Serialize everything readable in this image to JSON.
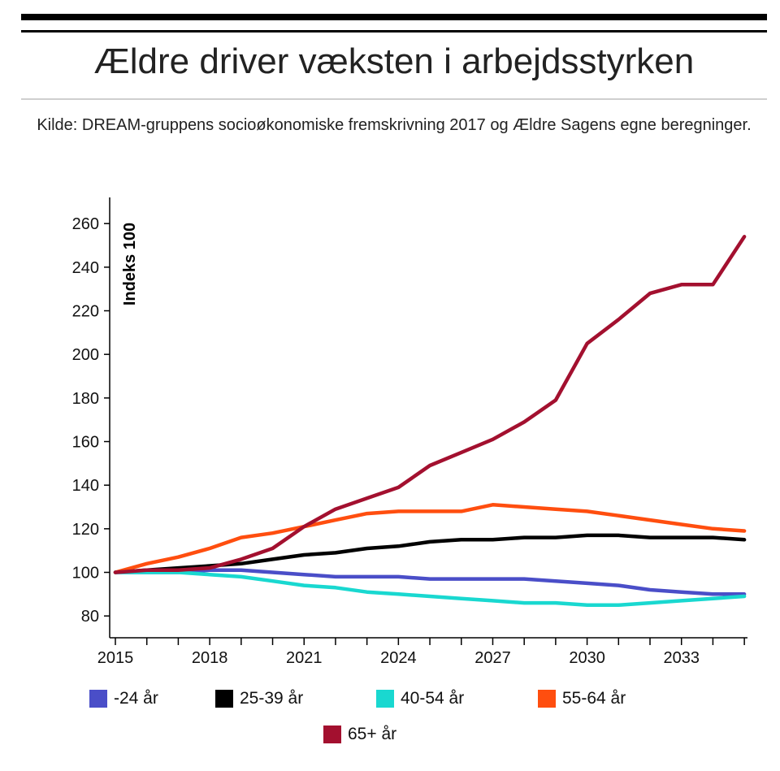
{
  "header": {
    "title": "Ældre driver væksten i arbejdsstyrken",
    "subtitle": "Kilde: DREAM-gruppens socioøkonomiske fremskrivning 2017 og Ældre Sagens egne beregninger."
  },
  "chart_data": {
    "type": "line",
    "title": "Ældre driver væksten i arbejdsstyrken",
    "subtitle": "Kilde: DREAM-gruppens socioøkonomiske fremskrivning 2017 og Ældre Sagens egne beregninger.",
    "ylabel": "Indeks 100",
    "xlabel": "",
    "ylim": [
      70,
      272
    ],
    "xlim": [
      2015,
      2035.1
    ],
    "yticks": [
      80,
      100,
      120,
      140,
      160,
      180,
      200,
      220,
      240,
      260
    ],
    "xticks": [
      2015,
      2018,
      2021,
      2024,
      2027,
      2030,
      2033
    ],
    "grid": false,
    "legend_position": "bottom",
    "x": [
      2015,
      2016,
      2017,
      2018,
      2019,
      2020,
      2021,
      2022,
      2023,
      2024,
      2025,
      2026,
      2027,
      2028,
      2029,
      2030,
      2031,
      2032,
      2033,
      2034,
      2035
    ],
    "series": [
      {
        "name": "-24 år",
        "color": "#4a4ec8",
        "values": [
          100,
          100,
          100,
          101,
          101,
          100,
          99,
          98,
          98,
          98,
          97,
          97,
          97,
          97,
          96,
          95,
          94,
          92,
          91,
          90,
          90
        ]
      },
      {
        "name": "25-39 år",
        "color": "#000000",
        "values": [
          100,
          101,
          102,
          103,
          104,
          106,
          108,
          109,
          111,
          112,
          114,
          115,
          115,
          116,
          116,
          117,
          117,
          116,
          116,
          116,
          115
        ]
      },
      {
        "name": "40-54 år",
        "color": "#19d8d0",
        "values": [
          100,
          100,
          100,
          99,
          98,
          96,
          94,
          93,
          91,
          90,
          89,
          88,
          87,
          86,
          86,
          85,
          85,
          86,
          87,
          88,
          89
        ]
      },
      {
        "name": "55-64 år",
        "color": "#ff4e0f",
        "values": [
          100,
          104,
          107,
          111,
          116,
          118,
          121,
          124,
          127,
          128,
          128,
          128,
          131,
          130,
          129,
          128,
          126,
          124,
          122,
          120,
          119
        ]
      },
      {
        "name": "65+ år",
        "color": "#a3102f",
        "values": [
          100,
          101,
          101,
          102,
          106,
          111,
          121,
          129,
          134,
          139,
          149,
          155,
          161,
          169,
          179,
          205,
          216,
          228,
          232,
          232,
          254
        ]
      }
    ]
  }
}
